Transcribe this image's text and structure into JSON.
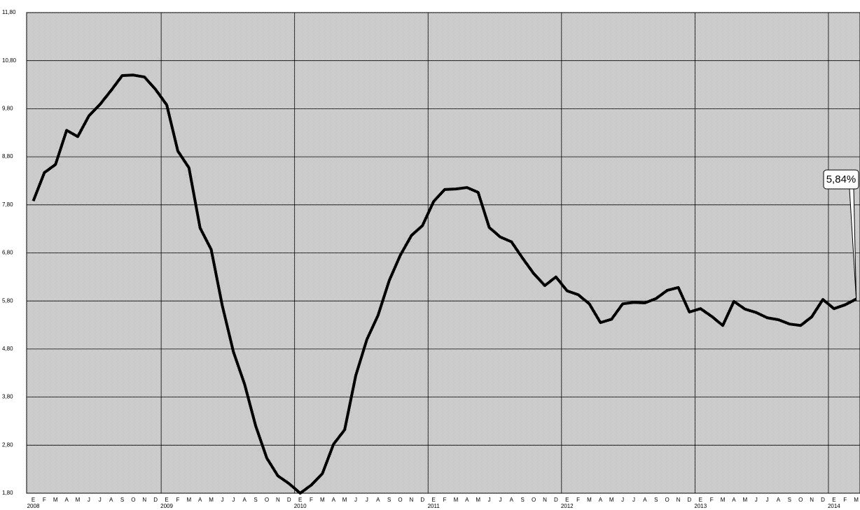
{
  "chart_data": {
    "type": "line",
    "categories": [
      "E",
      "F",
      "M",
      "A",
      "M",
      "J",
      "J",
      "A",
      "S",
      "O",
      "N",
      "D",
      "E",
      "F",
      "M",
      "A",
      "M",
      "J",
      "J",
      "A",
      "S",
      "O",
      "N",
      "D",
      "E",
      "F",
      "M",
      "A",
      "M",
      "J",
      "J",
      "A",
      "S",
      "O",
      "N",
      "D",
      "E",
      "F",
      "M",
      "A",
      "M",
      "J",
      "J",
      "A",
      "S",
      "O",
      "N",
      "D",
      "E",
      "F",
      "M",
      "A",
      "M",
      "J",
      "J",
      "A",
      "S",
      "O",
      "N",
      "D",
      "E",
      "F",
      "M",
      "A",
      "M",
      "J",
      "J",
      "A",
      "S",
      "O",
      "N",
      "D",
      "E",
      "F",
      "M"
    ],
    "year_labels": [
      "2008",
      "2009",
      "2010",
      "2011",
      "2012",
      "2013",
      "2014"
    ],
    "series": [
      {
        "color": "#000000",
        "values": [
          7.88,
          8.47,
          8.64,
          9.35,
          9.22,
          9.65,
          9.89,
          10.18,
          10.49,
          10.5,
          10.46,
          10.2,
          9.88,
          8.92,
          8.57,
          7.32,
          6.87,
          5.7,
          4.74,
          4.07,
          3.2,
          2.53,
          2.16,
          2.0,
          1.8,
          1.97,
          2.21,
          2.82,
          3.12,
          4.25,
          5.0,
          5.5,
          6.22,
          6.75,
          7.16,
          7.37,
          7.87,
          8.12,
          8.13,
          8.16,
          8.06,
          7.33,
          7.13,
          7.03,
          6.69,
          6.37,
          6.12,
          6.3,
          6.01,
          5.93,
          5.74,
          5.35,
          5.42,
          5.74,
          5.77,
          5.76,
          5.85,
          6.02,
          6.08,
          5.57,
          5.64,
          5.48,
          5.29,
          5.79,
          5.63,
          5.56,
          5.45,
          5.41,
          5.32,
          5.29,
          5.47,
          5.83,
          5.64,
          5.72,
          5.84
        ]
      }
    ],
    "ylim": [
      1.8,
      11.8
    ],
    "yticks": [
      {
        "value": 1.8,
        "label": "1,80"
      },
      {
        "value": 2.8,
        "label": "2,80"
      },
      {
        "value": 3.8,
        "label": "3,80"
      },
      {
        "value": 4.8,
        "label": "4,80"
      },
      {
        "value": 5.8,
        "label": "5,80"
      },
      {
        "value": 6.8,
        "label": "6,80"
      },
      {
        "value": 7.8,
        "label": "7,80"
      },
      {
        "value": 8.8,
        "label": "8,80"
      },
      {
        "value": 9.8,
        "label": "9,80"
      },
      {
        "value": 10.8,
        "label": "10,80"
      },
      {
        "value": 11.8,
        "label": "11,80"
      }
    ],
    "grid": true,
    "annotation": "5,84%"
  }
}
